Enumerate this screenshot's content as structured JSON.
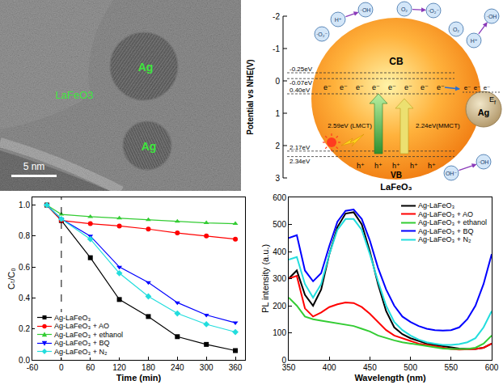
{
  "tem_image": {
    "particles": [
      "Ag",
      "Ag"
    ],
    "support": "LaFeO3",
    "scale_bar": "5 nm"
  },
  "diagram": {
    "axis_title": "Potential vs NHE(V)",
    "ticks": [
      -2,
      -1,
      0,
      1,
      2,
      3
    ],
    "levels": [
      {
        "value": -0.25,
        "label": "-0.25eV"
      },
      {
        "value": -0.07,
        "label": "-0.07eV"
      },
      {
        "value": 0.4,
        "label": "0.40eV"
      },
      {
        "value": 2.17,
        "label": "2.17eV"
      },
      {
        "value": 2.34,
        "label": "2.34eV"
      }
    ],
    "conduction_band": "CB",
    "valence_band": "VB",
    "transitions": [
      "2.59eV (LMCT)",
      "2.24eV(MMCT)"
    ],
    "semiconductor": "LaFeO₃",
    "metal": "Ag",
    "fermi_level": {
      "main": "E",
      "subscript": "f"
    },
    "electron": "e⁻",
    "hole": "h⁺",
    "reactions": [
      {
        "reactants": [
          "·O₂⁻",
          "H⁺"
        ],
        "product": "·OH"
      },
      {
        "reactants": [
          "O₂"
        ],
        "product": "·O₂⁻"
      },
      {
        "reactants": [
          "O₂",
          "H⁺"
        ],
        "product": "·OH"
      },
      {
        "reactants": [
          "OH⁻"
        ],
        "product": "·OH"
      }
    ]
  },
  "chart_data": [
    {
      "type": "line",
      "xlabel": "Time (min)",
      "ylabel": "Cₜ/C₀",
      "x": [
        -30,
        0,
        60,
        120,
        180,
        240,
        300,
        360
      ],
      "series": [
        {
          "name": "Ag-LaFeO₃",
          "color": "#000000",
          "marker": "square",
          "values": [
            1.0,
            0.9,
            0.66,
            0.39,
            0.28,
            0.15,
            0.1,
            0.06
          ]
        },
        {
          "name": "Ag-LaFeO₃ + AO",
          "color": "#ff0000",
          "marker": "circle",
          "values": [
            1.0,
            0.9,
            0.88,
            0.865,
            0.845,
            0.82,
            0.8,
            0.78
          ]
        },
        {
          "name": "Ag-LaFeO₃ + ethanol",
          "color": "#33cc33",
          "marker": "triangle-up",
          "values": [
            1.0,
            0.94,
            0.925,
            0.915,
            0.905,
            0.895,
            0.885,
            0.88
          ]
        },
        {
          "name": "Ag-LaFeO₃ + BQ",
          "color": "#0000ff",
          "marker": "triangle-down",
          "values": [
            1.0,
            0.91,
            0.8,
            0.6,
            0.5,
            0.37,
            0.29,
            0.24
          ]
        },
        {
          "name": "Ag-LaFeO₃ + N₂",
          "color": "#22dddd",
          "marker": "diamond",
          "values": [
            1.0,
            0.91,
            0.78,
            0.56,
            0.41,
            0.3,
            0.23,
            0.18
          ]
        }
      ],
      "xlim": [
        -60,
        380
      ],
      "xticks": [
        -60,
        0,
        60,
        120,
        180,
        240,
        300,
        360
      ],
      "ylim": [
        0,
        1.05
      ],
      "yticks": [
        {
          "value": 0,
          "label": "0.0"
        },
        0.2,
        0.4,
        0.6,
        0.8,
        {
          "value": 1,
          "label": "1.0"
        }
      ],
      "reference_x": 0,
      "grid": false,
      "legend": "lower left"
    },
    {
      "type": "line",
      "xlabel": "Wavelength (nm)",
      "ylabel": "PL intensity (a.u.)",
      "x": [
        350,
        360,
        370,
        380,
        390,
        400,
        410,
        420,
        430,
        440,
        450,
        460,
        470,
        480,
        490,
        500,
        510,
        520,
        530,
        540,
        550,
        560,
        570,
        580,
        590,
        600
      ],
      "series": [
        {
          "name": "Ag-LaFeO₃",
          "color": "#000000",
          "values": [
            300,
            330,
            240,
            200,
            260,
            390,
            490,
            540,
            545,
            500,
            400,
            280,
            180,
            120,
            95,
            80,
            70,
            60,
            55,
            50,
            45,
            42,
            40,
            40,
            45,
            60
          ]
        },
        {
          "name": "Ag-LaFeO₃ + AO",
          "color": "#ff0000",
          "values": [
            300,
            310,
            190,
            160,
            175,
            195,
            205,
            212,
            210,
            195,
            170,
            140,
            110,
            90,
            80,
            70,
            60,
            55,
            50,
            45,
            40,
            38,
            38,
            40,
            45,
            60
          ]
        },
        {
          "name": "Ag-LaFeO₃ + ethanol",
          "color": "#33cc33",
          "values": [
            230,
            200,
            160,
            150,
            145,
            140,
            135,
            130,
            125,
            115,
            105,
            90,
            80,
            72,
            65,
            60,
            55,
            50,
            45,
            42,
            40,
            40,
            40,
            45,
            60,
            90
          ]
        },
        {
          "name": "Ag-LaFeO₃ + BQ",
          "color": "#0000ff",
          "values": [
            450,
            460,
            330,
            290,
            320,
            420,
            510,
            550,
            555,
            520,
            440,
            340,
            260,
            200,
            160,
            140,
            125,
            115,
            110,
            108,
            110,
            120,
            150,
            200,
            280,
            390
          ]
        },
        {
          "name": "Ag-LaFeO₃ + N₂",
          "color": "#22dddd",
          "values": [
            370,
            380,
            280,
            230,
            280,
            390,
            480,
            520,
            520,
            480,
            390,
            290,
            200,
            140,
            110,
            90,
            75,
            65,
            60,
            55,
            55,
            58,
            65,
            80,
            120,
            180
          ]
        }
      ],
      "xlim": [
        350,
        600
      ],
      "xticks": [
        350,
        400,
        450,
        500,
        550,
        600
      ],
      "ylim": [
        0,
        600
      ],
      "yticks": [
        0,
        100,
        200,
        300,
        400,
        500,
        600
      ],
      "grid": false,
      "legend": "upper right"
    }
  ]
}
